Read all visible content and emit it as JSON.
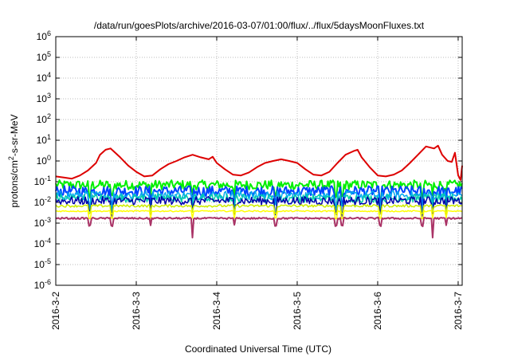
{
  "chart_data": {
    "type": "line",
    "title": "/data/run/goesPlots/archive/2016-03-07/01:00/flux/../flux/5daysMoonFluxes.txt",
    "xlabel": "Coordinated Universal Time (UTC)",
    "ylabel": {
      "prefix": "protons/cm",
      "sup": "2",
      "suffix": "-s-sr-MeV"
    },
    "y_scale": "log",
    "ylim": [
      1e-06,
      1000000
    ],
    "y_ticks": [
      {
        "base": "10",
        "exp": "-6",
        "value": 1e-06
      },
      {
        "base": "10",
        "exp": "-5",
        "value": 1e-05
      },
      {
        "base": "10",
        "exp": "-4",
        "value": 0.0001
      },
      {
        "base": "10",
        "exp": "-3",
        "value": 0.001
      },
      {
        "base": "10",
        "exp": "-2",
        "value": 0.01
      },
      {
        "base": "10",
        "exp": "-1",
        "value": 0.1
      },
      {
        "base": "10",
        "exp": "0",
        "value": 1
      },
      {
        "base": "10",
        "exp": "1",
        "value": 10
      },
      {
        "base": "10",
        "exp": "2",
        "value": 100
      },
      {
        "base": "10",
        "exp": "3",
        "value": 1000
      },
      {
        "base": "10",
        "exp": "4",
        "value": 10000
      },
      {
        "base": "10",
        "exp": "5",
        "value": 100000
      },
      {
        "base": "10",
        "exp": "6",
        "value": 1000000
      }
    ],
    "x_range_days": [
      0,
      5.05
    ],
    "x_ticks": [
      {
        "label": "2016-3-2",
        "day": 0
      },
      {
        "label": "2016-3-3",
        "day": 1
      },
      {
        "label": "2016-3-4",
        "day": 2
      },
      {
        "label": "2016-3-5",
        "day": 3
      },
      {
        "label": "2016-3-6",
        "day": 4
      },
      {
        "label": "2016-3-7",
        "day": 5
      }
    ],
    "grid": true,
    "dips": [
      0.42,
      0.7,
      1.18,
      1.7,
      2.22,
      2.73,
      3.48,
      3.56,
      4.03,
      4.55,
      4.68,
      4.85
    ],
    "big_dips": [
      1.7,
      4.68
    ],
    "series": [
      {
        "color": "#dd0000",
        "width": 2,
        "points": [
          [
            0,
            0.18
          ],
          [
            0.1,
            0.16
          ],
          [
            0.2,
            0.14
          ],
          [
            0.3,
            0.2
          ],
          [
            0.4,
            0.35
          ],
          [
            0.5,
            0.8
          ],
          [
            0.55,
            2.0
          ],
          [
            0.62,
            3.5
          ],
          [
            0.68,
            4.0
          ],
          [
            0.74,
            2.5
          ],
          [
            0.8,
            1.5
          ],
          [
            0.9,
            0.6
          ],
          [
            1.0,
            0.3
          ],
          [
            1.1,
            0.18
          ],
          [
            1.2,
            0.2
          ],
          [
            1.3,
            0.4
          ],
          [
            1.4,
            0.7
          ],
          [
            1.5,
            1.0
          ],
          [
            1.6,
            1.5
          ],
          [
            1.7,
            2.0
          ],
          [
            1.8,
            1.5
          ],
          [
            1.9,
            1.2
          ],
          [
            1.95,
            1.6
          ],
          [
            2.0,
            0.8
          ],
          [
            2.1,
            0.4
          ],
          [
            2.2,
            0.22
          ],
          [
            2.3,
            0.2
          ],
          [
            2.4,
            0.28
          ],
          [
            2.5,
            0.5
          ],
          [
            2.6,
            0.8
          ],
          [
            2.7,
            1.0
          ],
          [
            2.8,
            1.2
          ],
          [
            2.9,
            1.0
          ],
          [
            3.0,
            0.8
          ],
          [
            3.1,
            0.4
          ],
          [
            3.2,
            0.22
          ],
          [
            3.3,
            0.2
          ],
          [
            3.4,
            0.3
          ],
          [
            3.5,
            0.8
          ],
          [
            3.6,
            2.0
          ],
          [
            3.7,
            3.0
          ],
          [
            3.75,
            3.5
          ],
          [
            3.8,
            1.5
          ],
          [
            3.9,
            0.5
          ],
          [
            4.0,
            0.2
          ],
          [
            4.1,
            0.18
          ],
          [
            4.2,
            0.22
          ],
          [
            4.3,
            0.35
          ],
          [
            4.4,
            0.8
          ],
          [
            4.5,
            2.0
          ],
          [
            4.6,
            5.0
          ],
          [
            4.7,
            4.0
          ],
          [
            4.75,
            5.5
          ],
          [
            4.8,
            2.0
          ],
          [
            4.87,
            1.0
          ],
          [
            4.92,
            0.9
          ],
          [
            4.96,
            2.5
          ],
          [
            5.0,
            0.2
          ],
          [
            5.03,
            0.12
          ],
          [
            5.05,
            0.6
          ]
        ]
      },
      {
        "color": "#00ee00",
        "width": 2,
        "level": 0.07,
        "jitter": 0.45
      },
      {
        "color": "#0044ff",
        "width": 2,
        "level": 0.035,
        "jitter": 0.5
      },
      {
        "color": "#00aaee",
        "width": 1.5,
        "level": 0.022,
        "jitter": 0.45
      },
      {
        "color": "#00ccaa",
        "width": 1.5,
        "level": 0.016,
        "jitter": 0.4
      },
      {
        "color": "#0000aa",
        "width": 1.5,
        "level": 0.012,
        "jitter": 0.4
      },
      {
        "color": "#ccee00",
        "width": 1.5,
        "level": 0.0068,
        "jitter": 0.12
      },
      {
        "color": "#ffff00",
        "width": 1.5,
        "level": 0.0038,
        "jitter": 0.06
      },
      {
        "color": "#aa3366",
        "width": 2,
        "level": 0.0017,
        "jitter": 0.08
      }
    ]
  }
}
